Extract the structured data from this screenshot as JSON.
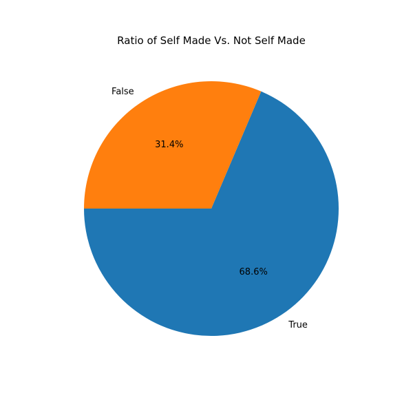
{
  "chart_data": {
    "type": "pie",
    "title": "Ratio of Self Made Vs. Not Self Made",
    "categories": [
      "True",
      "False"
    ],
    "values": [
      68.6,
      31.4
    ],
    "value_labels": [
      "68.6%",
      "31.4%"
    ],
    "colors": [
      "#1f77b4",
      "#ff7f0e"
    ],
    "start_angle_deg": 180,
    "direction": "counterclockwise",
    "legend": "none"
  }
}
